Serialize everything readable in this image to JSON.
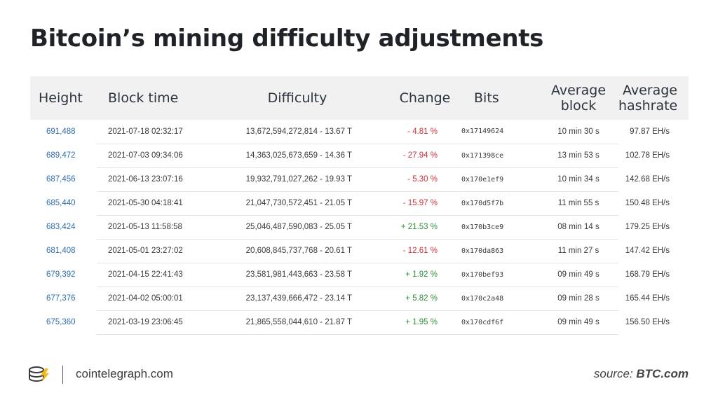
{
  "title": "Bitcoin’s mining difficulty adjustments",
  "chart_data": {
    "type": "table",
    "title": "Bitcoin’s mining difficulty adjustments",
    "columns": [
      {
        "key": "height",
        "label": "Height"
      },
      {
        "key": "block_time",
        "label": "Block time"
      },
      {
        "key": "difficulty",
        "label": "Difficulty"
      },
      {
        "key": "change",
        "label": "Change"
      },
      {
        "key": "bits",
        "label": "Bits"
      },
      {
        "key": "avg_block",
        "label": "Average block"
      },
      {
        "key": "avg_hashrate",
        "label": "Average hashrate"
      }
    ],
    "rows": [
      {
        "height": "691,488",
        "block_time": "2021-07-18 02:32:17",
        "difficulty": "13,672,594,272,814 - 13.67 T",
        "change": "- 4.81 %",
        "bits": "0x17149624",
        "avg_block": "10 min 30 s",
        "avg_hashrate": "97.87 EH/s"
      },
      {
        "height": "689,472",
        "block_time": "2021-07-03 09:34:06",
        "difficulty": "14,363,025,673,659 - 14.36 T",
        "change": "- 27.94 %",
        "bits": "0x171398ce",
        "avg_block": "13 min 53 s",
        "avg_hashrate": "102.78 EH/s"
      },
      {
        "height": "687,456",
        "block_time": "2021-06-13 23:07:16",
        "difficulty": "19,932,791,027,262 - 19.93 T",
        "change": "- 5.30 %",
        "bits": "0x170e1ef9",
        "avg_block": "10 min 34 s",
        "avg_hashrate": "142.68 EH/s"
      },
      {
        "height": "685,440",
        "block_time": "2021-05-30 04:18:41",
        "difficulty": "21,047,730,572,451 - 21.05 T",
        "change": "- 15.97 %",
        "bits": "0x170d5f7b",
        "avg_block": "11 min 55 s",
        "avg_hashrate": "150.48 EH/s"
      },
      {
        "height": "683,424",
        "block_time": "2021-05-13 11:58:58",
        "difficulty": "25,046,487,590,083 - 25.05 T",
        "change": "+ 21.53 %",
        "bits": "0x170b3ce9",
        "avg_block": "08 min 14 s",
        "avg_hashrate": "179.25 EH/s"
      },
      {
        "height": "681,408",
        "block_time": "2021-05-01 23:27:02",
        "difficulty": "20,608,845,737,768 - 20.61 T",
        "change": "- 12.61 %",
        "bits": "0x170da863",
        "avg_block": "11 min 27 s",
        "avg_hashrate": "147.42 EH/s"
      },
      {
        "height": "679,392",
        "block_time": "2021-04-15 22:41:43",
        "difficulty": "23,581,981,443,663 - 23.58 T",
        "change": "+ 1.92 %",
        "bits": "0x170bef93",
        "avg_block": "09 min 49 s",
        "avg_hashrate": "168.79 EH/s"
      },
      {
        "height": "677,376",
        "block_time": "2021-04-02 05:00:01",
        "difficulty": "23,137,439,666,472 - 23.14 T",
        "change": "+ 5.82 %",
        "bits": "0x170c2a48",
        "avg_block": "09 min 28 s",
        "avg_hashrate": "165.44 EH/s"
      },
      {
        "height": "675,360",
        "block_time": "2021-03-19 23:06:45",
        "difficulty": "21,865,558,044,610 - 21.87 T",
        "change": "+ 1.95 %",
        "bits": "0x170cdf6f",
        "avg_block": "09 min 49 s",
        "avg_hashrate": "156.50 EH/s"
      }
    ]
  },
  "colors": {
    "negative": "#d0313b",
    "positive": "#2f8f3c",
    "height_link": "#2f6fb0",
    "header_bg": "#f1f1f1",
    "logo_gold": "#f5b915"
  },
  "footer": {
    "logo_icon": "cointelegraph-coin-icon",
    "site": "cointelegraph.com",
    "source_label": "source:",
    "source_value": "BTC.com"
  }
}
